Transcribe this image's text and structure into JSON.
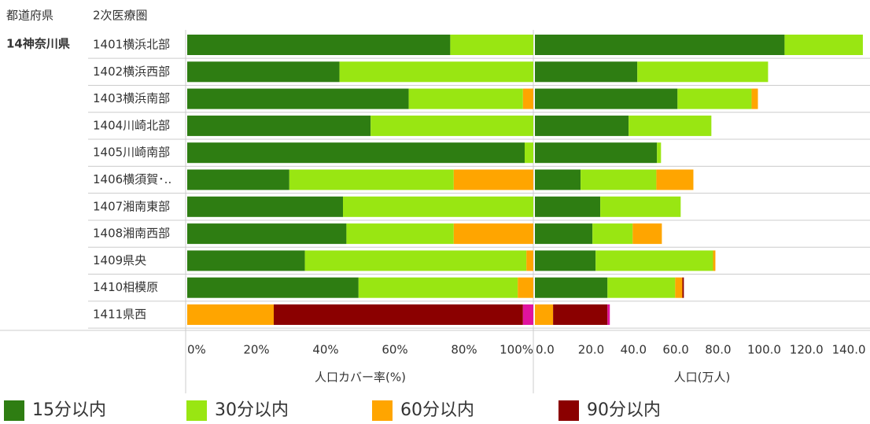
{
  "headers": [
    "都道府県",
    "2次医療圏"
  ],
  "group": "14神奈川県",
  "chart_data": [
    {
      "type": "bar",
      "orientation": "horizontal",
      "stacked": true,
      "xlabel": "人口カバー率(%)",
      "categories": [
        "1401横浜北部",
        "1402横浜西部",
        "1403横浜南部",
        "1404川崎北部",
        "1405川崎南部",
        "1406横須賀･..",
        "1407湘南東部",
        "1408湘南西部",
        "1409県央",
        "1410相模原",
        "1411県西"
      ],
      "series": [
        {
          "name": "15分以内",
          "color": "#2e7d12",
          "values": [
            76,
            44,
            64,
            53,
            97.5,
            29.5,
            45,
            46,
            34,
            49.5,
            0
          ]
        },
        {
          "name": "30分以内",
          "color": "#99e612",
          "values": [
            24,
            56,
            33,
            47,
            2.5,
            47.5,
            55,
            31,
            64,
            46,
            0
          ]
        },
        {
          "name": "60分以内",
          "color": "#ffa500",
          "values": [
            0,
            0,
            3,
            0,
            0,
            23,
            0,
            23,
            2,
            4.5,
            25
          ]
        },
        {
          "name": "90分以内",
          "color": "#8b0000",
          "values": [
            0,
            0,
            0,
            0,
            0,
            0,
            0,
            0,
            0,
            0,
            72
          ]
        },
        {
          "color": "#e0139f",
          "values": [
            0,
            0,
            0,
            0,
            0,
            0,
            0,
            0,
            0,
            0,
            3
          ]
        }
      ],
      "xlim": [
        0,
        100
      ],
      "xticks": [
        {
          "value": 0,
          "label": "0%"
        },
        {
          "value": 20,
          "label": "20%"
        },
        {
          "value": 40,
          "label": "40%"
        },
        {
          "value": 60,
          "label": "60%"
        },
        {
          "value": 80,
          "label": "80%"
        },
        {
          "value": 100,
          "label": "100%"
        }
      ]
    },
    {
      "type": "bar",
      "orientation": "horizontal",
      "stacked": true,
      "xlabel": "人口(万人)",
      "series": [
        {
          "color": "#2e7d12",
          "values": [
            118,
            48.4,
            67.4,
            44.3,
            57.7,
            21.6,
            30.9,
            27.2,
            28.7,
            34.3,
            0
          ]
        },
        {
          "color": "#99e612",
          "values": [
            37,
            61.8,
            35,
            39.1,
            1.9,
            35.8,
            38,
            19,
            55.5,
            32,
            0
          ]
        },
        {
          "color": "#ffa500",
          "values": [
            0,
            0,
            3,
            0,
            0,
            17.5,
            0,
            13.8,
            1.1,
            3.4,
            8.6
          ]
        },
        {
          "color": "#8b0000",
          "values": [
            0,
            0,
            0,
            0,
            0,
            0,
            0,
            0,
            0,
            0.7,
            25.7
          ]
        },
        {
          "color": "#e0139f",
          "values": [
            0,
            0,
            0,
            0,
            0,
            0,
            0,
            0,
            0,
            0,
            1.1
          ]
        }
      ],
      "xlim": [
        0,
        158
      ],
      "xticks": [
        {
          "value": 0,
          "label": "0.0"
        },
        {
          "value": 20,
          "label": "20.0"
        },
        {
          "value": 40,
          "label": "40.0"
        },
        {
          "value": 60,
          "label": "60.0"
        },
        {
          "value": 80,
          "label": "80.0"
        },
        {
          "value": 100,
          "label": "100.0"
        },
        {
          "value": 120,
          "label": "120.0"
        },
        {
          "value": 140,
          "label": "140.0"
        }
      ]
    }
  ]
}
